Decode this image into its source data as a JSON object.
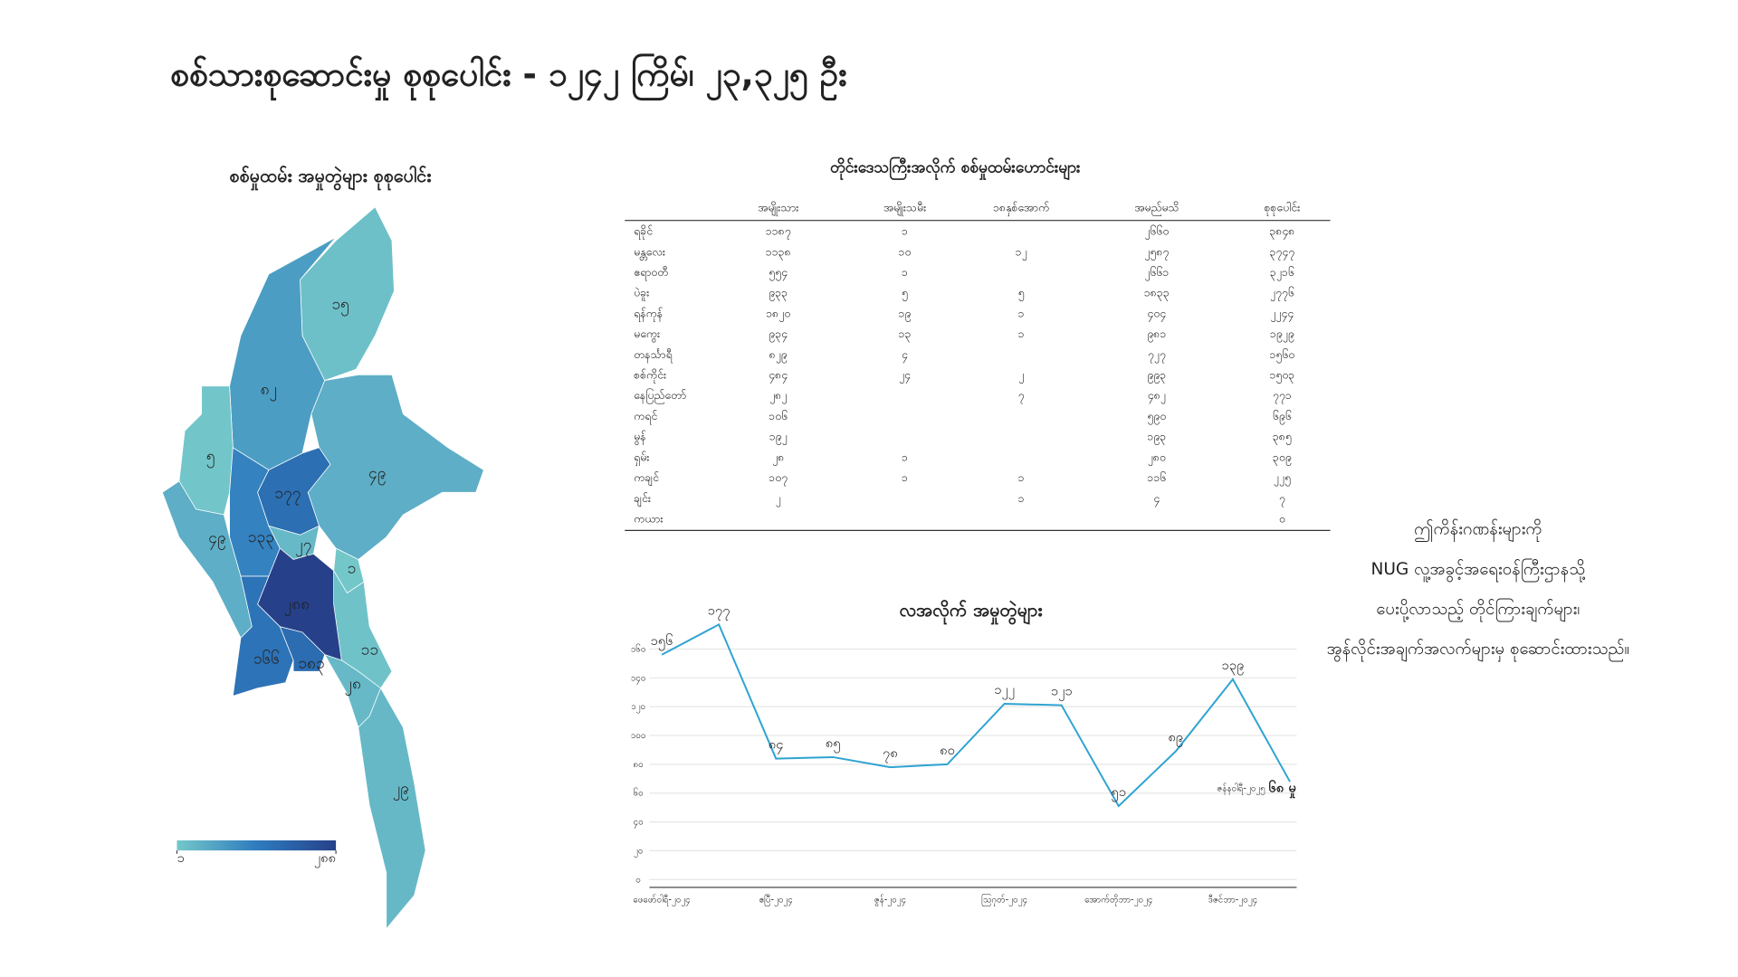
{
  "title": "စစ်သားစုဆောင်းမှု စုစုပေါင်း - ၁၂၄၂ ကြိမ်၊ ၂၃,၃၂၅ ဦး",
  "note": [
    "ဤကိန်းဂဏန်းများကို",
    "NUG လူ့အခွင့်အရေးဝန်ကြီးဌာနသို့",
    "ပေးပို့လာသည့် တိုင်ကြားချက်များ၊",
    "အွန်လိုင်းအချက်အလက်များမှ စုဆောင်းထားသည်။"
  ],
  "table": {
    "title": "တိုင်းဒေသကြီးအလိုက် စစ်မှုထမ်းဟောင်းများ",
    "columns": [
      "အမျိုးသား",
      "အမျိုးသမီး",
      "၁၈နှစ်အောက်",
      "အမည်မသိ",
      "စုစုပေါင်း"
    ],
    "rows": [
      [
        "ရခိုင်",
        "၁၁၈၇",
        "၁",
        null,
        "၂၆၆၀",
        "၃၈၄၈"
      ],
      [
        "မန္တလေး",
        "၁၁၃၈",
        "၁၀",
        "၁၂",
        "၂၅၈၇",
        "၃၇၄၇"
      ],
      [
        "ဧရာဝတီ",
        "၅၅၄",
        "၁",
        null,
        "၂၆၆၁",
        "၃၂၁၆"
      ],
      [
        "ပဲခူး",
        "၉၃၃",
        "၅",
        "၅",
        "၁၈၃၃",
        "၂၇၇၆"
      ],
      [
        "ရန်ကုန်",
        "၁၈၂၀",
        "၁၉",
        "၁",
        "၄၀၄",
        "၂၂၄၄"
      ],
      [
        "မကွေး",
        "၉၃၄",
        "၁၃",
        "၁",
        "၉၈၁",
        "၁၉၂၉"
      ],
      [
        "တနင်္သာရီ",
        "၈၂၉",
        "၄",
        null,
        "၇၂၇",
        "၁၅၆၀"
      ],
      [
        "စစ်ကိုင်း",
        "၄၈၄",
        "၂၄",
        "၂",
        "၉၉၃",
        "၁၅၀၃"
      ],
      [
        "နေပြည်တော်",
        "၂၈၂",
        null,
        "၇",
        "၄၈၂",
        "၇၇၁"
      ],
      [
        "ကရင်",
        "၁၀၆",
        null,
        null,
        "၅၉၀",
        "၆၉၆"
      ],
      [
        "မွန်",
        "၁၉၂",
        null,
        null,
        "၁၉၃",
        "၃၈၅"
      ],
      [
        "ရှမ်း",
        "၂၈",
        "၁",
        null,
        "၂၈၀",
        "၃၀၉"
      ],
      [
        "ကချင်",
        "၁၀၇",
        "၁",
        "၁",
        "၁၁၆",
        "၂၂၅"
      ],
      [
        "ချင်း",
        "၂",
        null,
        "၁",
        "၄",
        "၇"
      ],
      [
        "ကယား",
        null,
        null,
        null,
        null,
        "၀"
      ]
    ]
  },
  "chart_data": [
    {
      "type": "choropleth",
      "title": "စစ်မှုထမ်း အမှုတွဲများ စုစုပေါင်း",
      "values": [
        15,
        82,
        5,
        49,
        177,
        133,
        49,
        27,
        1,
        288,
        166,
        183,
        11,
        28,
        29
      ],
      "value_labels": [
        "၁၅",
        "၈၂",
        "၅",
        "၄၉",
        "၁၇၇",
        "၁၃၃",
        "၄၉",
        "၂၇",
        "၁",
        "၂၈၈",
        "၁၆၆",
        "၁၈၃",
        "၁၁",
        "၂၈",
        "၂၉"
      ],
      "colorscale": [
        "#74c7c9",
        "#2e7cbf",
        "#26418a"
      ],
      "colorbar_ticks": [
        {
          "value": 1,
          "label": "၁"
        },
        {
          "value": 288,
          "label": "၂၈၈"
        }
      ]
    },
    {
      "type": "line",
      "title": "လအလိုက် အမှုတွဲများ",
      "categories": [
        "ဖေဖော်ဝါရီ-၂၀၂၄",
        null,
        "ဧပြီ-၂၀၂၄",
        null,
        "ဇွန်-၂၀၂၄",
        null,
        "ဩဂုတ်-၂၀၂၄",
        null,
        "အောက်တိုဘာ-၂၀၂၄",
        null,
        "ဒီဇင်ဘာ-၂၀၂၄",
        null
      ],
      "values": [
        156,
        177,
        84,
        85,
        78,
        80,
        122,
        121,
        51,
        89,
        139,
        68
      ],
      "value_labels": [
        "၁၅၆",
        "၁၇၇",
        "၈၄",
        "၈၅",
        "၇၈",
        "၈၀",
        "၁၂၂",
        "၁၂၁",
        "၅၁",
        "၈၉",
        "၁၃၉",
        "၆၈ မှု"
      ],
      "annotation": "ဇန်နဝါရီ-၂၀၂၅",
      "color": "#2ea3d2",
      "ylim": [
        0,
        160
      ],
      "yticks": [
        {
          "value": 0,
          "label": "၀"
        },
        {
          "value": 20,
          "label": "၂၀"
        },
        {
          "value": 40,
          "label": "၄၀"
        },
        {
          "value": 60,
          "label": "၆၀"
        },
        {
          "value": 80,
          "label": "၈၀"
        },
        {
          "value": 100,
          "label": "၁၀၀"
        },
        {
          "value": 120,
          "label": "၁၂၀"
        },
        {
          "value": 140,
          "label": "၁၄၀"
        },
        {
          "value": 160,
          "label": "၁၆၀"
        }
      ],
      "grid": true
    }
  ]
}
